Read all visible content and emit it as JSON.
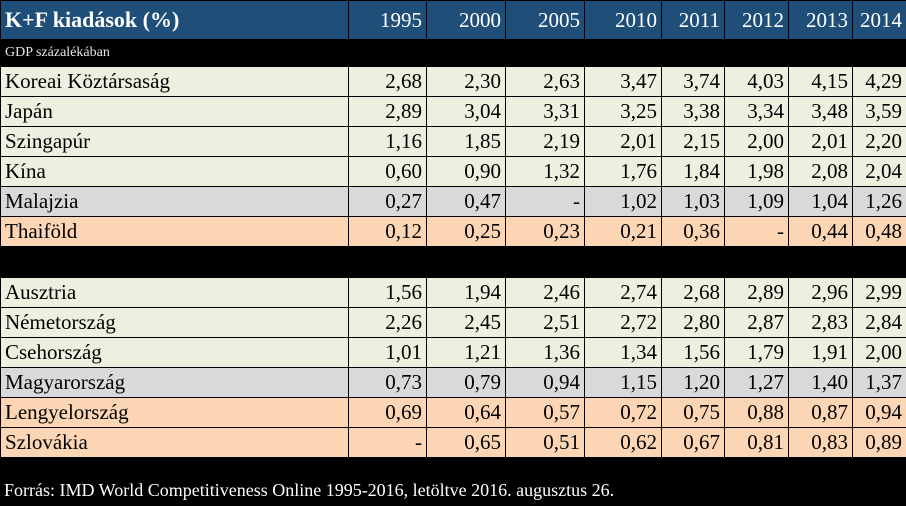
{
  "table": {
    "title": "K+F kiadások (%)",
    "years": [
      "1995",
      "2000",
      "2005",
      "2010",
      "2011",
      "2012",
      "2013",
      "2014"
    ],
    "subtitle": "GDP százalékában",
    "group1": [
      {
        "name": "Koreai Köztársaság",
        "values": [
          "2,68",
          "2,30",
          "2,63",
          "3,47",
          "3,74",
          "4,03",
          "4,15",
          "4,29"
        ],
        "shade": "green"
      },
      {
        "name": "Japán",
        "values": [
          "2,89",
          "3,04",
          "3,31",
          "3,25",
          "3,38",
          "3,34",
          "3,48",
          "3,59"
        ],
        "shade": "green"
      },
      {
        "name": "Szingapúr",
        "values": [
          "1,16",
          "1,85",
          "2,19",
          "2,01",
          "2,15",
          "2,00",
          "2,01",
          "2,20"
        ],
        "shade": "green"
      },
      {
        "name": "Kína",
        "values": [
          "0,60",
          "0,90",
          "1,32",
          "1,76",
          "1,84",
          "1,98",
          "2,08",
          "2,04"
        ],
        "shade": "green"
      },
      {
        "name": "Malajzia",
        "values": [
          "0,27",
          "0,47",
          "-",
          "1,02",
          "1,03",
          "1,09",
          "1,04",
          "1,26"
        ],
        "shade": "gray"
      },
      {
        "name": "Thaiföld",
        "values": [
          "0,12",
          "0,25",
          "0,23",
          "0,21",
          "0,36",
          "-",
          "0,44",
          "0,48"
        ],
        "shade": "peach"
      }
    ],
    "group2": [
      {
        "name": "Ausztria",
        "values": [
          "1,56",
          "1,94",
          "2,46",
          "2,74",
          "2,68",
          "2,89",
          "2,96",
          "2,99"
        ],
        "shade": "green"
      },
      {
        "name": "Németország",
        "values": [
          "2,26",
          "2,45",
          "2,51",
          "2,72",
          "2,80",
          "2,87",
          "2,83",
          "2,84"
        ],
        "shade": "green"
      },
      {
        "name": "Csehország",
        "values": [
          "1,01",
          "1,21",
          "1,36",
          "1,34",
          "1,56",
          "1,79",
          "1,91",
          "2,00"
        ],
        "shade": "green"
      },
      {
        "name": "Magyarország",
        "values": [
          "0,73",
          "0,79",
          "0,94",
          "1,15",
          "1,20",
          "1,27",
          "1,40",
          "1,37"
        ],
        "shade": "gray"
      },
      {
        "name": "Lengyelország",
        "values": [
          "0,69",
          "0,64",
          "0,57",
          "0,72",
          "0,75",
          "0,88",
          "0,87",
          "0,94"
        ],
        "shade": "peach"
      },
      {
        "name": "Szlovákia",
        "values": [
          "-",
          "0,65",
          "0,51",
          "0,62",
          "0,67",
          "0,81",
          "0,83",
          "0,89"
        ],
        "shade": "peach"
      }
    ],
    "source": "Forrás: IMD World Competitiveness Online 1995-2016, letöltve 2016. augusztus 26."
  }
}
